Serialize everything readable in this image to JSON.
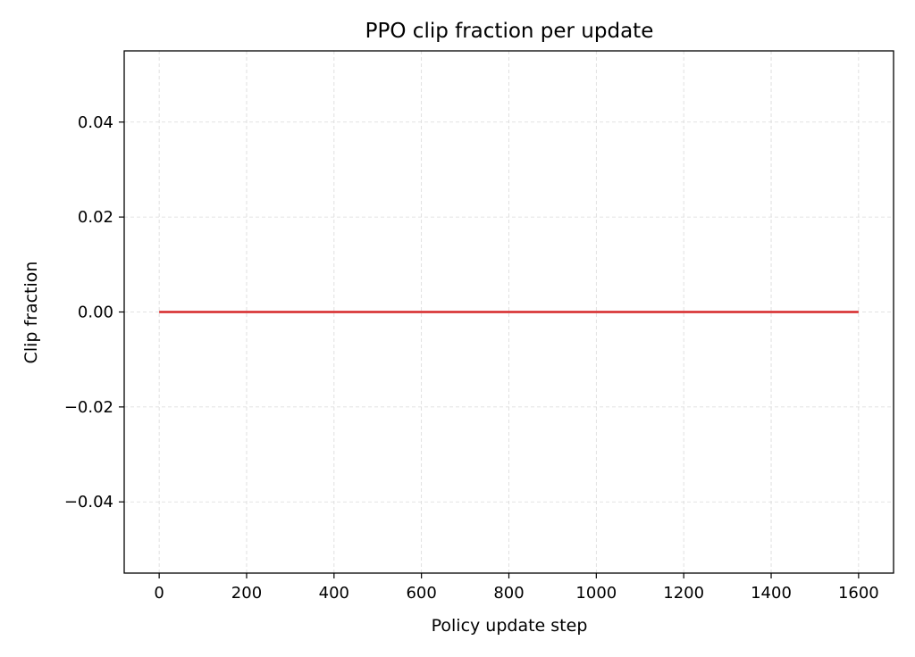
{
  "chart_data": {
    "type": "line",
    "title": "PPO clip fraction per update",
    "xlabel": "Policy update step",
    "ylabel": "Clip fraction",
    "xlim": [
      -80,
      1680
    ],
    "ylim": [
      -0.055,
      0.055
    ],
    "x_ticks": [
      0,
      200,
      400,
      600,
      800,
      1000,
      1200,
      1400,
      1600
    ],
    "x_tick_labels": [
      "0",
      "200",
      "400",
      "600",
      "800",
      "1000",
      "1200",
      "1400",
      "1600"
    ],
    "y_ticks": [
      -0.04,
      -0.02,
      0.0,
      0.02,
      0.04
    ],
    "y_tick_labels": [
      "−0.04",
      "−0.02",
      "0.00",
      "0.02",
      "0.04"
    ],
    "grid": true,
    "series": [
      {
        "color": "#d62728",
        "x": [
          0,
          200,
          400,
          600,
          800,
          1000,
          1200,
          1400,
          1600
        ],
        "y": [
          0,
          0,
          0,
          0,
          0,
          0,
          0,
          0,
          0
        ]
      }
    ]
  }
}
